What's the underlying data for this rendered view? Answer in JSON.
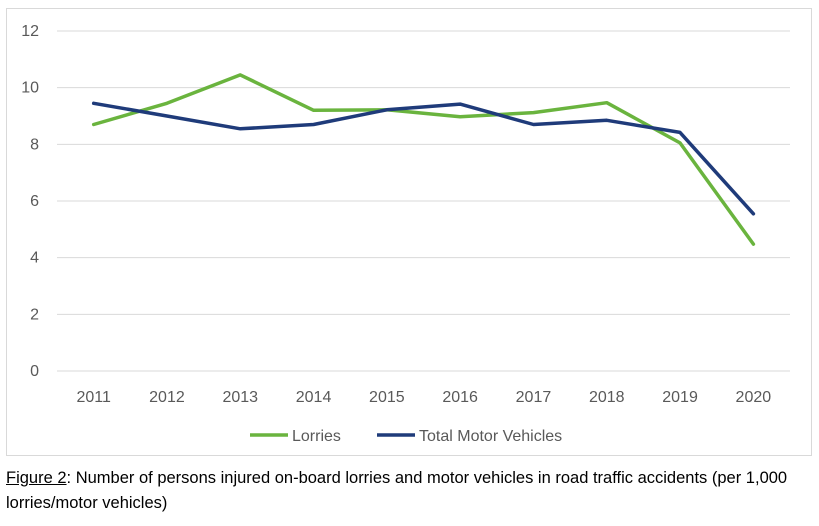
{
  "chart_data": {
    "type": "line",
    "categories": [
      "2011",
      "2012",
      "2013",
      "2014",
      "2015",
      "2016",
      "2017",
      "2018",
      "2019",
      "2020"
    ],
    "series": [
      {
        "name": "Lorries",
        "color": "#6ab43e",
        "values": [
          8.7,
          9.45,
          10.45,
          9.2,
          9.22,
          8.97,
          9.12,
          9.47,
          8.05,
          4.48
        ]
      },
      {
        "name": "Total Motor Vehicles",
        "color": "#1f3b7a",
        "values": [
          9.45,
          9.0,
          8.55,
          8.7,
          9.22,
          9.42,
          8.7,
          8.85,
          8.42,
          5.55
        ]
      }
    ],
    "yticks": [
      "0",
      "2",
      "4",
      "6",
      "8",
      "10",
      "12"
    ],
    "ylim": [
      0,
      12
    ],
    "grid": true,
    "legend": "bottom"
  },
  "caption": {
    "label": "Figure 2",
    "text": ": Number of persons injured on-board lorries and motor vehicles in road traffic accidents (per 1,000 lorries/motor vehicles)"
  }
}
